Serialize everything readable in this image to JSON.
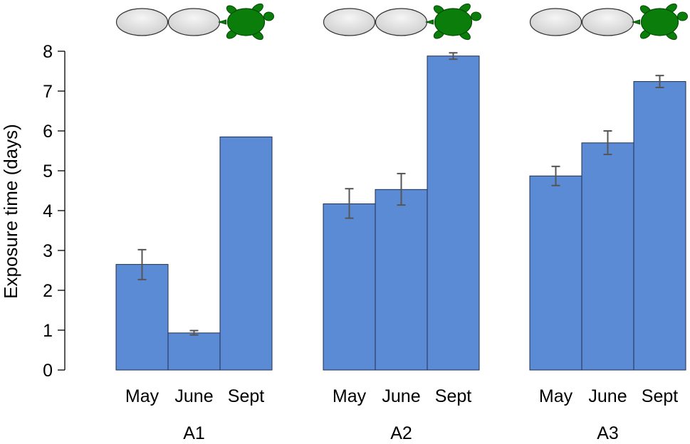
{
  "chart_data": {
    "type": "bar",
    "ylabel": "Exposure time (days)",
    "ylim": [
      0,
      8
    ],
    "yticks": [
      0,
      1,
      2,
      3,
      4,
      5,
      6,
      7,
      8
    ],
    "grid": false,
    "categories": [
      "May",
      "June",
      "Sept"
    ],
    "groups": [
      {
        "name": "A1",
        "values": [
          2.65,
          0.93,
          5.85
        ],
        "error_low": [
          2.27,
          0.88,
          null
        ],
        "error_high": [
          3.02,
          0.99,
          null
        ]
      },
      {
        "name": "A2",
        "values": [
          4.17,
          4.53,
          7.88
        ],
        "error_low": [
          3.81,
          4.14,
          7.8
        ],
        "error_high": [
          4.55,
          4.93,
          7.96
        ]
      },
      {
        "name": "A3",
        "values": [
          4.87,
          5.7,
          7.24
        ],
        "error_low": [
          4.63,
          5.41,
          7.09
        ],
        "error_high": [
          5.11,
          6.0,
          7.39
        ]
      }
    ],
    "header_icons": [
      "egg-icon",
      "egg-icon",
      "turtle-icon"
    ],
    "colors": {
      "bar": "#5b8bd5",
      "bar_stroke": "#1f2f4f",
      "error_bar": "#555555",
      "turtle": "#0a7d0a",
      "egg_fill": "#dcdcdc",
      "egg_stroke": "#333333"
    }
  }
}
